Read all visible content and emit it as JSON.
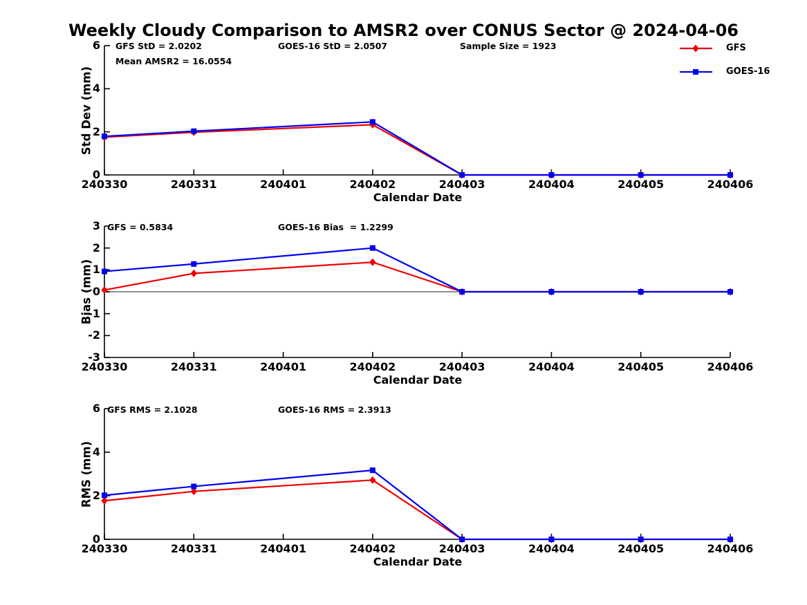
{
  "figure": {
    "title": "Weekly Cloudy Comparison to AMSR2 over CONUS Sector @ 2024-04-06",
    "background": "#ffffff",
    "colors": {
      "gfs": "#ee0000",
      "goes16": "#0000ee",
      "zero_line": "#808080",
      "axis": "#000000"
    }
  },
  "legend": {
    "position": "top-right-outside",
    "items": [
      {
        "label": "GFS",
        "color": "#ee0000",
        "marker": "diamond"
      },
      {
        "label": "GOES-16",
        "color": "#0000ee",
        "marker": "square"
      }
    ]
  },
  "chart_data": [
    {
      "type": "line",
      "ylabel": "Std Dev (mm)",
      "xlabel": "Calendar Date",
      "ylim": [
        0,
        6
      ],
      "yticks": [
        0,
        2,
        4,
        6
      ],
      "grid": false,
      "categories": [
        "240330",
        "240331",
        "240401",
        "240402",
        "240403",
        "240404",
        "240405",
        "240406"
      ],
      "annotations": [
        {
          "text": "GFS StD = 2.0202"
        },
        {
          "text": "Mean AMSR2 = 16.0554"
        },
        {
          "text": "GOES-16 StD = 2.0507"
        },
        {
          "text": "Sample Size = 1923"
        }
      ],
      "series": [
        {
          "name": "GFS",
          "color": "#ee0000",
          "marker": "diamond",
          "values": [
            1.75,
            1.98,
            null,
            2.33,
            0,
            0,
            0,
            0
          ]
        },
        {
          "name": "GOES-16",
          "color": "#0000ee",
          "marker": "square",
          "values": [
            1.79,
            2.03,
            null,
            2.46,
            0,
            0,
            0,
            0
          ]
        }
      ]
    },
    {
      "type": "line",
      "ylabel": "Bias (mm)",
      "xlabel": "Calendar Date",
      "ylim": [
        -3,
        3
      ],
      "yticks": [
        -3,
        -2,
        -1,
        0,
        1,
        2,
        3
      ],
      "zero_line": true,
      "grid": false,
      "categories": [
        "240330",
        "240331",
        "240401",
        "240402",
        "240403",
        "240404",
        "240405",
        "240406"
      ],
      "annotations": [
        {
          "text": "GFS = 0.5834"
        },
        {
          "text": "GOES-16 Bias  = 1.2299"
        }
      ],
      "series": [
        {
          "name": "GFS",
          "color": "#ee0000",
          "marker": "diamond",
          "values": [
            0.08,
            0.84,
            null,
            1.35,
            0,
            0,
            0,
            0
          ]
        },
        {
          "name": "GOES-16",
          "color": "#0000ee",
          "marker": "square",
          "values": [
            0.93,
            1.27,
            null,
            2.0,
            0,
            0,
            0,
            0
          ]
        }
      ]
    },
    {
      "type": "line",
      "ylabel": "RMS (mm)",
      "xlabel": "Calendar Date",
      "ylim": [
        0,
        6
      ],
      "yticks": [
        0,
        2,
        4,
        6
      ],
      "grid": false,
      "categories": [
        "240330",
        "240331",
        "240401",
        "240402",
        "240403",
        "240404",
        "240405",
        "240406"
      ],
      "annotations": [
        {
          "text": "GFS RMS = 2.1028"
        },
        {
          "text": "GOES-16 RMS = 2.3913"
        }
      ],
      "series": [
        {
          "name": "GFS",
          "color": "#ee0000",
          "marker": "diamond",
          "values": [
            1.77,
            2.2,
            null,
            2.72,
            0,
            0,
            0,
            0
          ]
        },
        {
          "name": "GOES-16",
          "color": "#0000ee",
          "marker": "square",
          "values": [
            2.02,
            2.43,
            null,
            3.17,
            0,
            0,
            0,
            0
          ]
        }
      ]
    }
  ]
}
